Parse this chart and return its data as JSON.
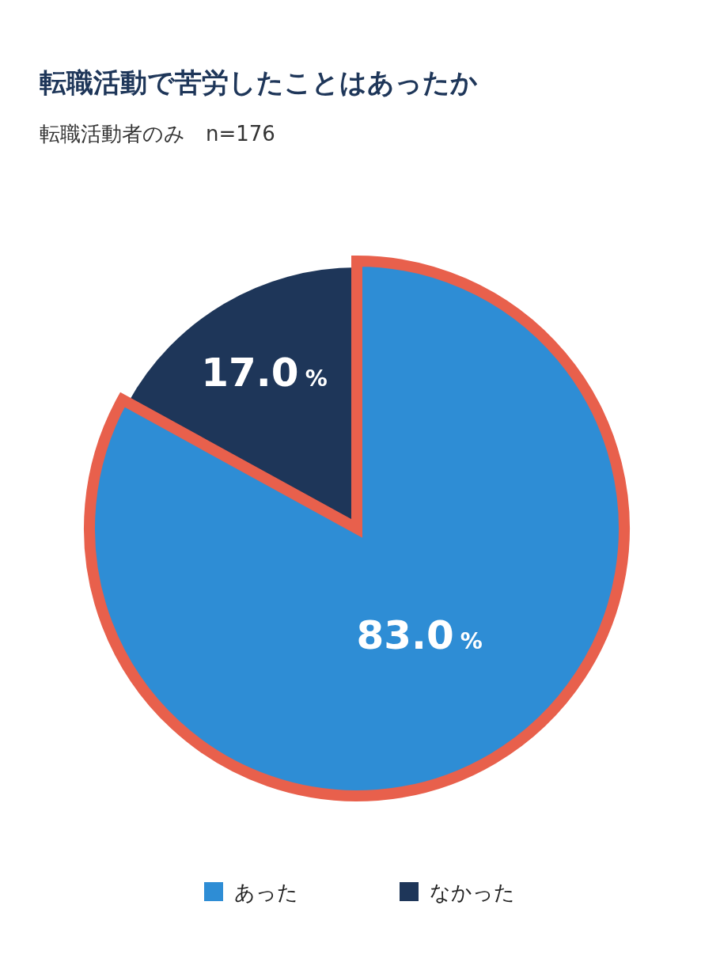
{
  "chart_data": {
    "type": "pie",
    "title": "転職活動で苦労したことはあったか",
    "subtitle": "転職活動者のみ　n=176",
    "categories": [
      "あった",
      "なかった"
    ],
    "values": [
      83.0,
      17.0
    ],
    "colors": [
      "#2e8dd5",
      "#1e3659"
    ],
    "value_labels": [
      "83.0 %",
      "17.0 %"
    ],
    "legend": "bottom"
  }
}
